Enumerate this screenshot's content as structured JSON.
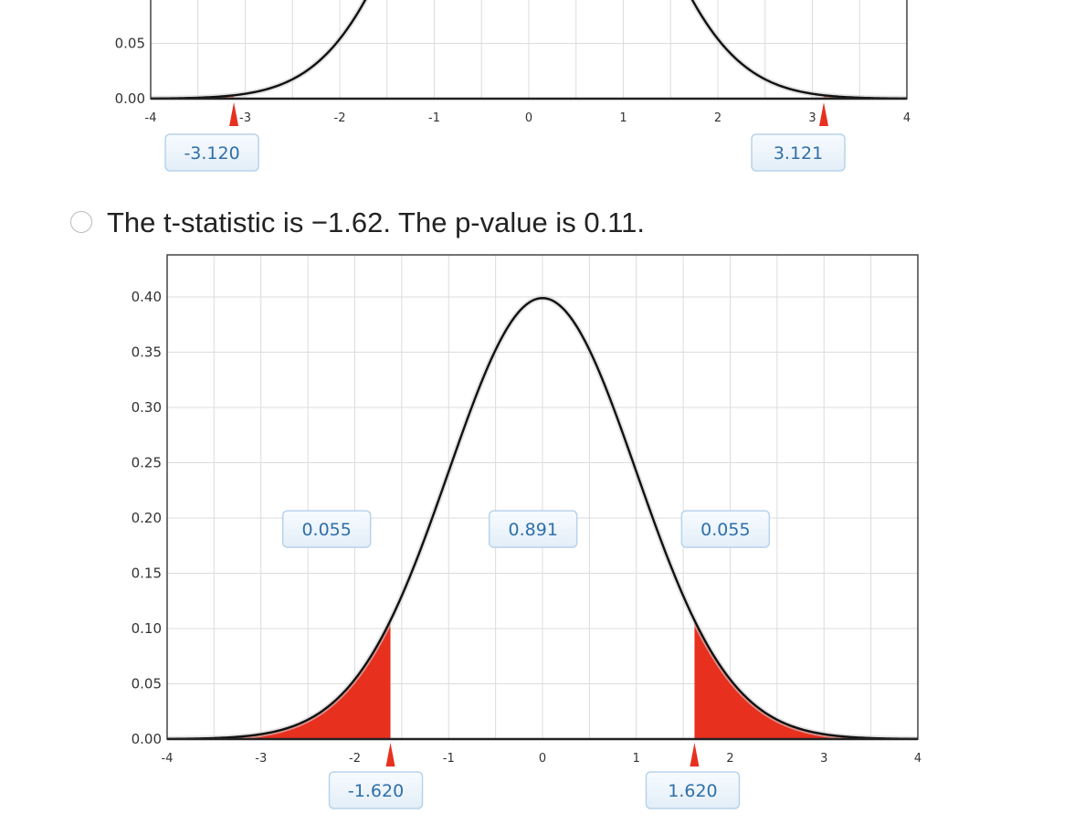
{
  "option": {
    "text": "The t-statistic is −1.62. The p-value is 0.11."
  },
  "colors": {
    "tail_fill": "#e8301f",
    "curve": "#111111",
    "grid": "#dcdcdc",
    "frame": "#444444",
    "label_border": "#b8d3ea",
    "label_bg_top": "#f7fbff",
    "label_bg_bottom": "#e3eef8",
    "label_text": "#2f6fa8"
  },
  "chart_data": [
    {
      "type": "area",
      "distribution": "t",
      "title": "",
      "xlabel": "",
      "ylabel": "",
      "xlim": [
        -4,
        4
      ],
      "ylim_visible": [
        0,
        0.05
      ],
      "x_ticks": [
        "-4",
        "-3",
        "-2",
        "-1",
        "0",
        "1",
        "2",
        "3",
        "4"
      ],
      "y_ticks": [
        "0.00",
        "0.05"
      ],
      "y_tick_values": [
        0,
        0.05
      ],
      "grid": true,
      "shaded_tails": [
        {
          "side": "left",
          "from": -4,
          "to": -3.12
        },
        {
          "side": "right",
          "from": 3.121,
          "to": 4
        }
      ],
      "critical_labels": [
        {
          "value": -3.12,
          "text": "-3.120"
        },
        {
          "value": 3.121,
          "text": "3.121"
        }
      ],
      "area_labels": []
    },
    {
      "type": "area",
      "distribution": "t",
      "title": "",
      "xlabel": "",
      "ylabel": "",
      "xlim": [
        -4,
        4
      ],
      "ylim": [
        0,
        0.42
      ],
      "x_ticks": [
        "-4",
        "-3",
        "-2",
        "-1",
        "0",
        "1",
        "2",
        "3",
        "4"
      ],
      "y_ticks": [
        "0.00",
        "0.05",
        "0.10",
        "0.15",
        "0.20",
        "0.25",
        "0.30",
        "0.35",
        "0.40"
      ],
      "y_tick_values": [
        0,
        0.05,
        0.1,
        0.15,
        0.2,
        0.25,
        0.3,
        0.35,
        0.4
      ],
      "grid": true,
      "shaded_tails": [
        {
          "side": "left",
          "from": -4,
          "to": -1.62
        },
        {
          "side": "right",
          "from": 1.62,
          "to": 4
        }
      ],
      "critical_labels": [
        {
          "value": -1.62,
          "text": "-1.620"
        },
        {
          "value": 1.62,
          "text": "1.620"
        }
      ],
      "area_labels": [
        {
          "region": "left-tail",
          "x": -2.3,
          "y": 0.19,
          "text": "0.055"
        },
        {
          "region": "center",
          "x": -0.1,
          "y": 0.19,
          "text": "0.891"
        },
        {
          "region": "right-tail",
          "x": 1.95,
          "y": 0.19,
          "text": "0.055"
        }
      ]
    }
  ]
}
